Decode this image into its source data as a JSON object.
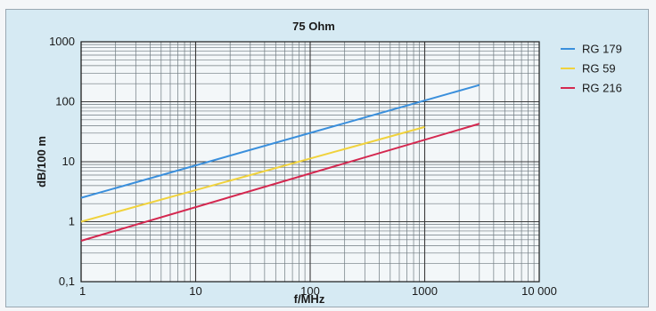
{
  "chart_data": {
    "type": "line",
    "title": "75 Ohm",
    "xlabel": "f/MHz",
    "ylabel": "dB/100 m",
    "xscale": "log",
    "yscale": "log",
    "xlim": [
      1,
      10000
    ],
    "ylim": [
      0.1,
      1000
    ],
    "grid": true,
    "legend_position": "right",
    "x_tick_labels": [
      "1",
      "10",
      "100",
      "1000",
      "10 000"
    ],
    "y_tick_labels": [
      "0,1",
      "1",
      "10",
      "100",
      "1000"
    ],
    "series": [
      {
        "name": "RG 179",
        "color": "#3a8fdc",
        "x": [
          1,
          3000
        ],
        "y": [
          2.5,
          190
        ]
      },
      {
        "name": "RG 59",
        "color": "#f0d23c",
        "x": [
          1,
          1000
        ],
        "y": [
          1.0,
          38
        ]
      },
      {
        "name": "RG 216",
        "color": "#d42850",
        "x": [
          1,
          3000
        ],
        "y": [
          0.48,
          43
        ]
      }
    ]
  }
}
